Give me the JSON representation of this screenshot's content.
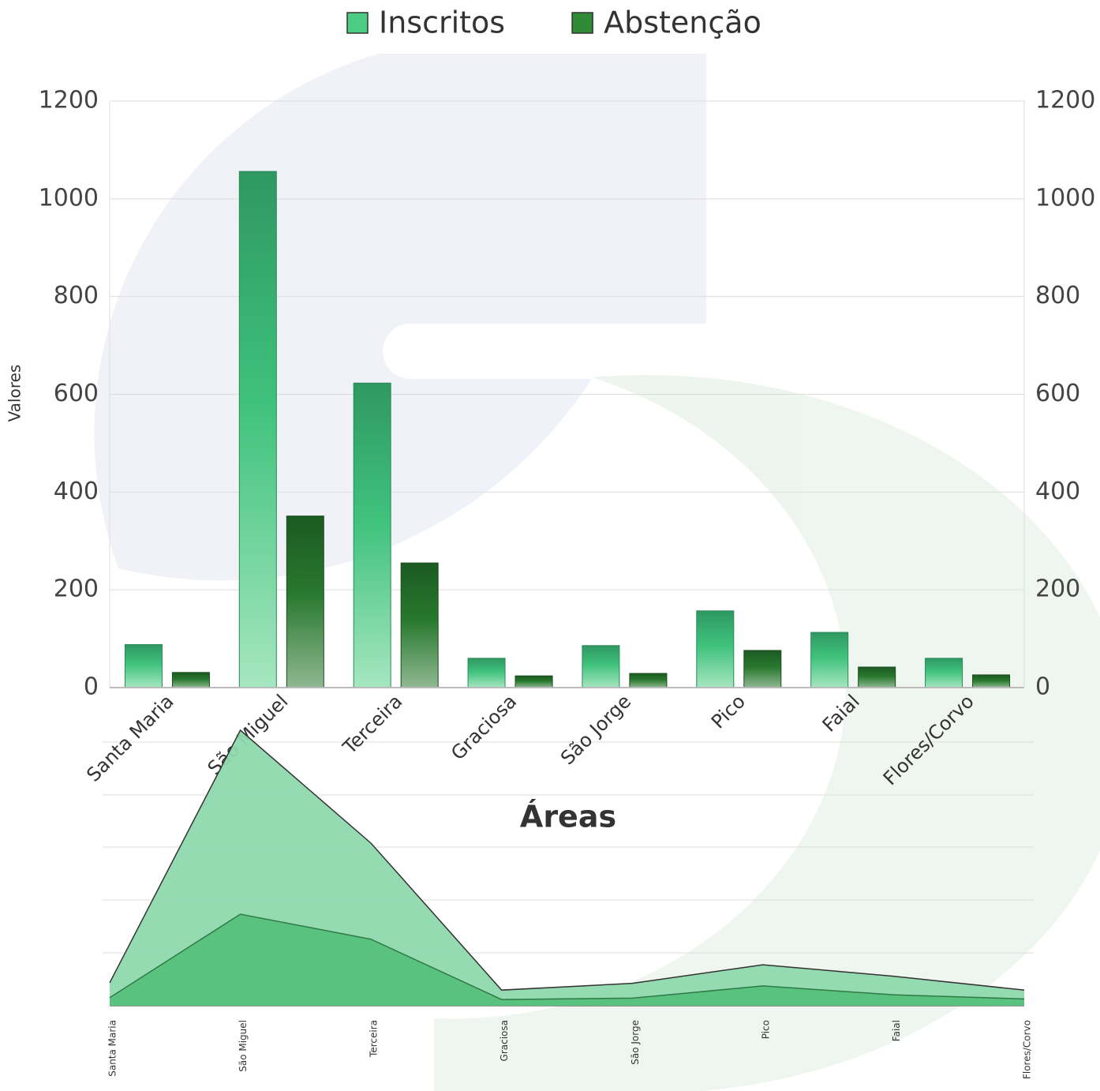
{
  "chart_data": {
    "type": "bar",
    "categories": [
      "Santa Maria",
      "São Miguel",
      "Terceira",
      "Graciosa",
      "São Jorge",
      "Pico",
      "Faial",
      "Flores/Corvo"
    ],
    "series": [
      {
        "name": "Inscritos",
        "color": "#4dcc86",
        "values": [
          88,
          1056,
          623,
          60,
          86,
          157,
          113,
          60
        ]
      },
      {
        "name": "Abstenção",
        "color": "#2f8a36",
        "values": [
          31,
          351,
          255,
          24,
          29,
          76,
          42,
          26
        ]
      }
    ],
    "ylabel": "Valores",
    "xlabel": "Áreas",
    "ylim": [
      0,
      1200
    ],
    "yticks": [
      0,
      200,
      400,
      600,
      800,
      1000,
      1200
    ],
    "grid": true,
    "legend": "top"
  }
}
